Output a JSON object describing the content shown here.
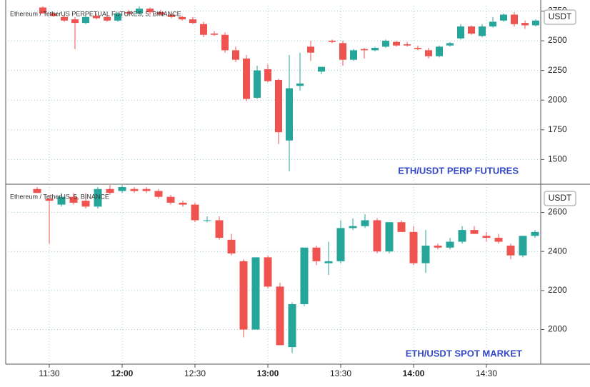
{
  "chart_data": [
    {
      "type": "candlestick",
      "title": "Ethereum / TetherUS PERPETUAL FUTURES, 5, BINANCE",
      "annotation": "ETH/USDT PERP FUTURES",
      "axis_label": "USDT",
      "up_color": "#26a69a",
      "down_color": "#ef5350",
      "grid": true,
      "ylim": [
        1310,
        2795
      ],
      "yticks": [
        1500,
        1750,
        2000,
        2250,
        2500,
        2750
      ],
      "open": [
        2780,
        2730,
        2700,
        2680,
        2650,
        2710,
        2700,
        2670,
        2740,
        2730,
        2770,
        2740,
        2720,
        2700,
        2680,
        2640,
        2560,
        2550,
        2420,
        2350,
        2020,
        2260,
        2170,
        1660,
        2120,
        2450,
        2240,
        2500,
        2480,
        2340,
        2430,
        2420,
        2450,
        2490,
        2470,
        2440,
        2420,
        2370,
        2460,
        2520,
        2620,
        2540,
        2620,
        2670,
        2720,
        2650,
        2630
      ],
      "high": [
        2790,
        2740,
        2720,
        2700,
        2720,
        2730,
        2720,
        2740,
        2760,
        2790,
        2780,
        2760,
        2740,
        2710,
        2700,
        2660,
        2580,
        2570,
        2450,
        2380,
        2290,
        2300,
        2180,
        2380,
        2400,
        2500,
        2280,
        2510,
        2500,
        2430,
        2440,
        2450,
        2510,
        2500,
        2490,
        2460,
        2440,
        2460,
        2490,
        2640,
        2630,
        2640,
        2700,
        2730,
        2740,
        2670,
        2680
      ],
      "low": [
        2730,
        2700,
        2660,
        2430,
        2640,
        2680,
        2660,
        2660,
        2720,
        2720,
        2720,
        2710,
        2690,
        2670,
        2640,
        2530,
        2540,
        2400,
        2320,
        1990,
        2010,
        2150,
        1630,
        1400,
        2080,
        2330,
        2220,
        2480,
        2290,
        2330,
        2350,
        2410,
        2440,
        2450,
        2450,
        2420,
        2350,
        2360,
        2450,
        2510,
        2550,
        2530,
        2610,
        2660,
        2620,
        2600,
        2620
      ],
      "close": [
        2730,
        2710,
        2670,
        2650,
        2700,
        2690,
        2670,
        2730,
        2730,
        2770,
        2740,
        2720,
        2700,
        2680,
        2650,
        2550,
        2550,
        2420,
        2340,
        2010,
        2250,
        2160,
        1730,
        2100,
        2140,
        2400,
        2280,
        2490,
        2340,
        2420,
        2420,
        2440,
        2500,
        2460,
        2460,
        2430,
        2370,
        2450,
        2480,
        2620,
        2560,
        2620,
        2660,
        2720,
        2640,
        2630,
        2670
      ]
    },
    {
      "type": "candlestick",
      "title": "Ethereum / TetherUS, 5, BINANCE",
      "annotation": "ETH/USDT SPOT MARKET",
      "axis_label": "USDT",
      "up_color": "#26a69a",
      "down_color": "#ef5350",
      "grid": true,
      "ylim": [
        1830,
        2730
      ],
      "yticks": [
        2000,
        2200,
        2400,
        2600
      ],
      "categories": [
        null,
        "11:30",
        null,
        null,
        null,
        null,
        null,
        "12:00",
        null,
        null,
        null,
        null,
        null,
        "12:30",
        null,
        null,
        null,
        null,
        null,
        "13:00",
        null,
        null,
        null,
        null,
        null,
        "13:30",
        null,
        null,
        null,
        null,
        null,
        "14:00",
        null,
        null,
        null,
        null,
        null,
        "14:30",
        null,
        null,
        null,
        null
      ],
      "open": [
        2720,
        2670,
        2640,
        2680,
        2660,
        2630,
        2720,
        2710,
        2720,
        2720,
        2710,
        2680,
        2650,
        2640,
        2560,
        2560,
        2460,
        2350,
        2000,
        2370,
        2220,
        1910,
        2130,
        2420,
        2340,
        2350,
        2520,
        2530,
        2560,
        2400,
        2550,
        2500,
        2340,
        2430,
        2420,
        2450,
        2510,
        2480,
        2470,
        2430,
        2380,
        2480
      ],
      "high": [
        2730,
        2690,
        2700,
        2700,
        2700,
        2730,
        2740,
        2740,
        2730,
        2730,
        2720,
        2690,
        2660,
        2650,
        2580,
        2580,
        2490,
        2360,
        2370,
        2380,
        2240,
        2140,
        2420,
        2430,
        2450,
        2560,
        2570,
        2590,
        2570,
        2550,
        2560,
        2530,
        2510,
        2440,
        2470,
        2530,
        2530,
        2500,
        2490,
        2440,
        2480,
        2510
      ],
      "low": [
        2700,
        2440,
        2630,
        2640,
        2620,
        2620,
        2690,
        2700,
        2700,
        2700,
        2670,
        2640,
        2630,
        2550,
        2550,
        2460,
        2380,
        1960,
        2000,
        2210,
        1920,
        1880,
        2120,
        2330,
        2280,
        2340,
        2510,
        2520,
        2390,
        2390,
        2500,
        2330,
        2290,
        2410,
        2410,
        2440,
        2490,
        2450,
        2440,
        2360,
        2370,
        2470
      ],
      "close": [
        2700,
        2660,
        2680,
        2650,
        2630,
        2720,
        2700,
        2730,
        2710,
        2710,
        2680,
        2650,
        2640,
        2560,
        2560,
        2470,
        2390,
        2000,
        2370,
        2220,
        1920,
        2130,
        2420,
        2350,
        2350,
        2520,
        2530,
        2560,
        2400,
        2550,
        2500,
        2340,
        2430,
        2420,
        2450,
        2510,
        2490,
        2470,
        2450,
        2380,
        2480,
        2500
      ]
    }
  ]
}
